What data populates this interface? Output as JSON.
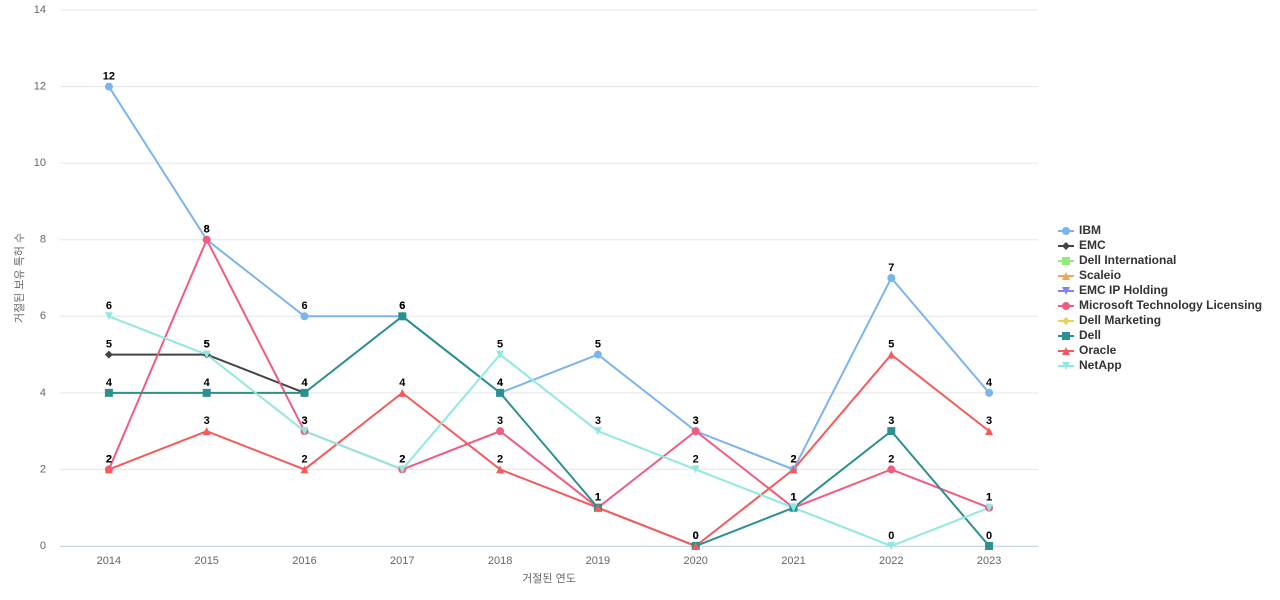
{
  "chart_data": {
    "type": "line",
    "x_label": "거절된 연도",
    "y_label": "거절된 보유 특허 수",
    "categories": [
      "2014",
      "2015",
      "2016",
      "2017",
      "2018",
      "2019",
      "2020",
      "2021",
      "2022",
      "2023"
    ],
    "ylim": [
      0,
      14
    ],
    "yticks": [
      0,
      2,
      4,
      6,
      8,
      10,
      12,
      14
    ],
    "grid": true,
    "legend": "right",
    "series": [
      {
        "name": "IBM",
        "color": "#7cb5ec",
        "marker": "circle",
        "values": [
          12,
          8,
          6,
          6,
          4,
          5,
          3,
          2,
          7,
          4
        ]
      },
      {
        "name": "EMC",
        "color": "#434348",
        "marker": "diamond",
        "values": [
          5,
          5,
          4,
          null,
          null,
          null,
          null,
          null,
          null,
          null
        ]
      },
      {
        "name": "Dell International",
        "color": "#90ed7d",
        "marker": "square",
        "values": [
          null,
          null,
          null,
          null,
          null,
          null,
          null,
          null,
          null,
          null
        ]
      },
      {
        "name": "Scaleio",
        "color": "#f7a35c",
        "marker": "triangle",
        "values": [
          null,
          null,
          null,
          null,
          null,
          null,
          null,
          null,
          null,
          null
        ]
      },
      {
        "name": "EMC IP Holding",
        "color": "#8085e9",
        "marker": "triangle-down",
        "values": [
          null,
          null,
          null,
          null,
          null,
          null,
          null,
          null,
          null,
          null
        ]
      },
      {
        "name": "Microsoft Technology Licensing",
        "color": "#f15c80",
        "marker": "circle",
        "values": [
          2,
          8,
          3,
          2,
          3,
          1,
          3,
          1,
          2,
          1
        ]
      },
      {
        "name": "Dell Marketing",
        "color": "#e4d354",
        "marker": "diamond",
        "values": [
          null,
          null,
          null,
          null,
          null,
          null,
          null,
          null,
          null,
          null
        ]
      },
      {
        "name": "Dell",
        "color": "#2b908f",
        "marker": "square",
        "values": [
          4,
          4,
          4,
          6,
          4,
          1,
          0,
          1,
          3,
          0
        ]
      },
      {
        "name": "Oracle",
        "color": "#f45b5b",
        "marker": "triangle",
        "values": [
          2,
          3,
          2,
          4,
          2,
          1,
          0,
          2,
          5,
          3
        ]
      },
      {
        "name": "NetApp",
        "color": "#91e8e1",
        "marker": "triangle-down",
        "values": [
          6,
          5,
          3,
          2,
          5,
          3,
          2,
          1,
          0,
          1
        ]
      }
    ]
  }
}
